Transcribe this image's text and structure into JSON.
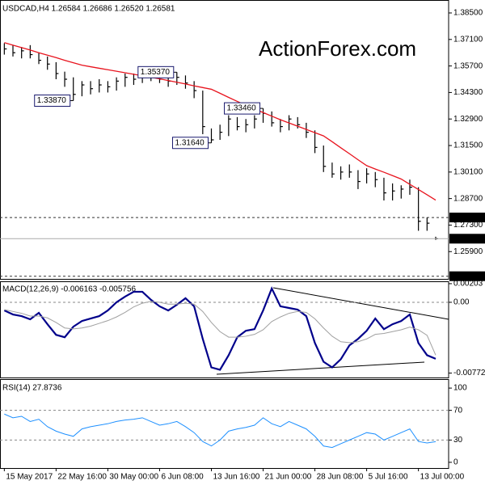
{
  "chart_data": [
    {
      "type": "ohlc",
      "title": "USDCAD,H4  1.26584 1.26686 1.26520 1.26581",
      "watermark": "ActionForex.com",
      "high": [
        1.369,
        1.368,
        1.367,
        1.368,
        1.364,
        1.362,
        1.359,
        1.354,
        1.351,
        1.349,
        1.349,
        1.35,
        1.349,
        1.351,
        1.353,
        1.353,
        1.353,
        1.3535,
        1.353,
        1.352,
        1.3537,
        1.352,
        1.349,
        1.344,
        1.324,
        1.326,
        1.331,
        1.33,
        1.329,
        1.331,
        1.3346,
        1.333,
        1.329,
        1.331,
        1.33,
        1.327,
        1.323,
        1.315,
        1.306,
        1.304,
        1.305,
        1.302,
        1.303,
        1.301,
        1.298,
        1.295,
        1.294,
        1.297,
        1.293,
        1.277,
        1.26686
      ],
      "low": [
        1.363,
        1.362,
        1.361,
        1.361,
        1.358,
        1.355,
        1.35,
        1.346,
        1.3387,
        1.341,
        1.342,
        1.343,
        1.343,
        1.344,
        1.346,
        1.347,
        1.348,
        1.349,
        1.348,
        1.346,
        1.347,
        1.345,
        1.34,
        1.321,
        1.3164,
        1.318,
        1.32,
        1.323,
        1.322,
        1.324,
        1.327,
        1.325,
        1.322,
        1.323,
        1.324,
        1.319,
        1.311,
        1.301,
        1.298,
        1.297,
        1.298,
        1.292,
        1.295,
        1.293,
        1.286,
        1.286,
        1.287,
        1.289,
        1.27,
        1.27,
        1.2652
      ],
      "close": [
        1.366,
        1.364,
        1.365,
        1.363,
        1.36,
        1.358,
        1.353,
        1.35,
        1.342,
        1.347,
        1.345,
        1.347,
        1.346,
        1.349,
        1.351,
        1.35,
        1.352,
        1.353,
        1.35,
        1.349,
        1.351,
        1.348,
        1.344,
        1.325,
        1.318,
        1.322,
        1.329,
        1.325,
        1.326,
        1.329,
        1.332,
        1.327,
        1.325,
        1.329,
        1.326,
        1.322,
        1.314,
        1.304,
        1.3,
        1.301,
        1.301,
        1.296,
        1.3,
        1.297,
        1.29,
        1.291,
        1.292,
        1.293,
        1.275,
        1.274,
        1.26581
      ],
      "bar_color": "#000000",
      "overlay": {
        "color": "#e8141e",
        "values": [
          1.3693,
          1.368,
          1.3667,
          1.3654,
          1.364,
          1.3627,
          1.3614,
          1.36,
          1.3587,
          1.3574,
          1.3566,
          1.3558,
          1.355,
          1.3542,
          1.3534,
          1.3526,
          1.3518,
          1.351,
          1.3502,
          1.3493,
          1.3484,
          1.3475,
          1.3465,
          1.3456,
          1.3447,
          1.3426,
          1.3404,
          1.3383,
          1.3362,
          1.3343,
          1.3324,
          1.3305,
          1.3286,
          1.3269,
          1.3252,
          1.3235,
          1.3218,
          1.3201,
          1.317,
          1.3138,
          1.3107,
          1.3075,
          1.3044,
          1.3026,
          1.3009,
          1.2991,
          1.2973,
          1.2945,
          1.2918,
          1.289,
          1.2862
        ]
      },
      "ylim": [
        1.2446,
        1.3914
      ],
      "yticks": [
        {
          "value": 1.385,
          "label": "1.38500"
        },
        {
          "value": 1.371,
          "label": "1.37100"
        },
        {
          "value": 1.357,
          "label": "1.35700"
        },
        {
          "value": 1.343,
          "label": "1.34300"
        },
        {
          "value": 1.329,
          "label": "1.32900"
        },
        {
          "value": 1.315,
          "label": "1.31500"
        },
        {
          "value": 1.301,
          "label": "1.30100"
        },
        {
          "value": 1.287,
          "label": "1.28700"
        },
        {
          "value": 1.273,
          "label": "1.27300"
        },
        {
          "value": 1.259,
          "label": "1.25900"
        }
      ],
      "levels": [
        {
          "value": 1.277,
          "label": "1.27700"
        },
        {
          "value": 1.246,
          "label": "1.24600"
        }
      ],
      "last_price": {
        "value": 1.26581,
        "label": "1.26581"
      },
      "annotations": [
        {
          "x": 8,
          "value": 1.3387,
          "label": "1.33870"
        },
        {
          "x": 20,
          "value": 1.3537,
          "label": "1.35370"
        },
        {
          "x": 30,
          "value": 1.3346,
          "label": "1.33460"
        },
        {
          "x": 24,
          "value": 1.3164,
          "label": "1.31640"
        }
      ]
    },
    {
      "type": "line",
      "title": "MACD(12,26,9) -0.006163 -0.005756",
      "series": [
        {
          "color": "#00008b",
          "width": 2.2,
          "values": [
            -0.00089,
            -0.00133,
            -0.00151,
            -0.00186,
            -0.00115,
            -0.00239,
            -0.00355,
            -0.00381,
            -0.00266,
            -0.00204,
            -0.00177,
            -0.00151,
            -0.00089,
            0,
            0.00062,
            0.00115,
            0.00115,
            0.00027,
            -0.00044,
            -0.00089,
            -0.00027,
            0.00044,
            -0.00044,
            -0.00399,
            -0.0071,
            -0.00736,
            -0.00577,
            -0.00381,
            -0.0031,
            -0.00293,
            -0.00089,
            0.00151,
            -0.00044,
            -0.00062,
            -0.0008,
            -0.00151,
            -0.00444,
            -0.00648,
            -0.0071,
            -0.00621,
            -0.0047,
            -0.00399,
            -0.0031,
            -0.00177,
            -0.00293,
            -0.00239,
            -0.00204,
            -0.00133,
            -0.00444,
            -0.00577,
            -0.006163
          ]
        },
        {
          "color": "#a0a0a0",
          "width": 1,
          "values": [
            -0.0008,
            -0.001,
            -0.0012,
            -0.0015,
            -0.0015,
            -0.0017,
            -0.0022,
            -0.0028,
            -0.0029,
            -0.0028,
            -0.0026,
            -0.0023,
            -0.002,
            -0.0016,
            -0.0011,
            -0.0005,
            -0.0001,
            0.0001,
            0,
            -0.0002,
            -0.0002,
            -0.0001,
            -0.0002,
            -0.001,
            -0.0022,
            -0.0032,
            -0.0038,
            -0.0038,
            -0.0037,
            -0.0035,
            -0.003,
            -0.0021,
            -0.0016,
            -0.0012,
            -0.001,
            -0.0011,
            -0.0018,
            -0.0028,
            -0.0037,
            -0.0043,
            -0.0044,
            -0.0043,
            -0.004,
            -0.0035,
            -0.0034,
            -0.0032,
            -0.003,
            -0.0027,
            -0.003,
            -0.0036,
            -0.005756
          ]
        }
      ],
      "ylim": [
        -0.0082,
        0.0022
      ],
      "yticks": [
        0.00203,
        {
          "value": 0,
          "label": "0.00"
        },
        -0.00772
      ],
      "levels": [
        0
      ]
    },
    {
      "type": "line",
      "title": "RSI(14) 27.8736",
      "series": [
        {
          "color": "#1e90ff",
          "width": 1,
          "values": [
            65,
            60,
            62,
            55,
            58,
            48,
            42,
            38,
            35,
            45,
            48,
            50,
            52,
            55,
            57,
            58,
            60,
            55,
            50,
            52,
            55,
            48,
            40,
            28,
            22,
            30,
            42,
            45,
            47,
            50,
            60,
            52,
            48,
            55,
            50,
            45,
            35,
            22,
            20,
            25,
            30,
            35,
            40,
            38,
            30,
            35,
            40,
            45,
            28,
            26,
            27.8736
          ]
        }
      ],
      "ylim": [
        -7.7,
        111
      ],
      "yticks": [
        100,
        70,
        30,
        0
      ],
      "levels": [
        70,
        30
      ],
      "xlim": [
        -0.5,
        51.5
      ],
      "xticks": [
        {
          "value": 0,
          "label": "15 May 2017"
        },
        {
          "value": 6,
          "label": "22 May 16:00"
        },
        {
          "value": 12,
          "label": "30 May 00:00"
        },
        {
          "value": 18,
          "label": "6 Jun 08:00"
        },
        {
          "value": 24,
          "label": "13 Jun 16:00"
        },
        {
          "value": 30,
          "label": "21 Jun 00:00"
        },
        {
          "value": 36,
          "label": "28 Jun 08:00"
        },
        {
          "value": 42,
          "label": "5 Jul 16:00"
        },
        {
          "value": 48,
          "label": "13 Jul 00:00"
        }
      ]
    }
  ]
}
